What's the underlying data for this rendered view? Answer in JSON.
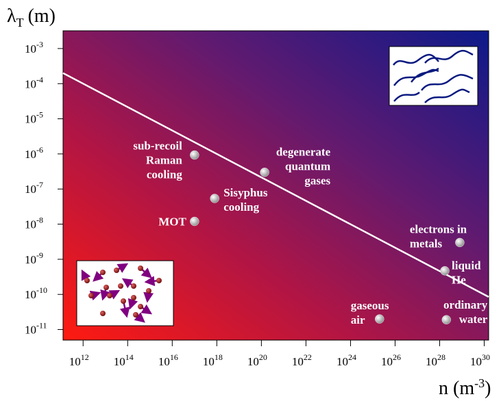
{
  "chart_data": {
    "type": "scatter",
    "xscale": "log",
    "yscale": "log",
    "xlim": [
      126000000000.0,
      1.58e+30
    ],
    "ylim": [
      5e-12,
      0.0032
    ],
    "xlabel": {
      "symbol": "n (m",
      "superscript": "-3",
      "close": ")"
    },
    "ylabel": {
      "symbol": "λ",
      "subscript": "T",
      "unit": "(m)"
    },
    "xticks": [
      {
        "value": 1000000000000.0,
        "label": "10",
        "exponent": "12"
      },
      {
        "value": 100000000000000.0,
        "label": "10",
        "exponent": "14"
      },
      {
        "value": 1e+16,
        "label": "10",
        "exponent": "16"
      },
      {
        "value": 1e+18,
        "label": "10",
        "exponent": "18"
      },
      {
        "value": 1e+20,
        "label": "10",
        "exponent": "20"
      },
      {
        "value": 1e+22,
        "label": "10",
        "exponent": "22"
      },
      {
        "value": 1e+24,
        "label": "10",
        "exponent": "24"
      },
      {
        "value": 1e+26,
        "label": "10",
        "exponent": "26"
      },
      {
        "value": 1e+28,
        "label": "10",
        "exponent": "28"
      },
      {
        "value": 1e+30,
        "label": "10",
        "exponent": "30"
      }
    ],
    "yticks": [
      {
        "value": 0.001,
        "label": "10",
        "exponent": "-3"
      },
      {
        "value": 0.0001,
        "label": "10",
        "exponent": "-4"
      },
      {
        "value": 1e-05,
        "label": "10",
        "exponent": "-5"
      },
      {
        "value": 1e-06,
        "label": "10",
        "exponent": "-6"
      },
      {
        "value": 1e-07,
        "label": "10",
        "exponent": "-7"
      },
      {
        "value": 1e-08,
        "label": "10",
        "exponent": "-8"
      },
      {
        "value": 1e-09,
        "label": "10",
        "exponent": "-9"
      },
      {
        "value": 1e-10,
        "label": "10",
        "exponent": "-10"
      },
      {
        "value": 1e-11,
        "label": "10",
        "exponent": "-11"
      }
    ],
    "series": [
      {
        "type": "line",
        "color": "#ffffff",
        "x": [
          126000000000.0,
          1.58e+30
        ],
        "values": [
          0.0002,
          8.5e-11
        ]
      },
      {
        "type": "scatter",
        "color": "#e6e6e6",
        "x": [
          1e+17,
          1.4e+20,
          8e+17,
          1e+17,
          8e+28,
          1.7e+28,
          2e+25,
          2e+28
        ],
        "values": [
          9.3e-07,
          3e-07,
          5.4e-08,
          1.2e-08,
          3e-09,
          4.7e-10,
          2e-11,
          1.9e-11
        ],
        "labels": [
          [
            "sub-recoil",
            "Raman",
            "cooling"
          ],
          [
            "degenerate",
            "quantum",
            "gases"
          ],
          [
            "Sisyphus",
            "cooling"
          ],
          [
            "MOT"
          ],
          [
            "electrons in",
            "metals"
          ],
          [
            "liquid",
            "He"
          ],
          [
            "gaseous",
            "air"
          ],
          [
            "ordinary",
            "water"
          ]
        ]
      }
    ]
  }
}
